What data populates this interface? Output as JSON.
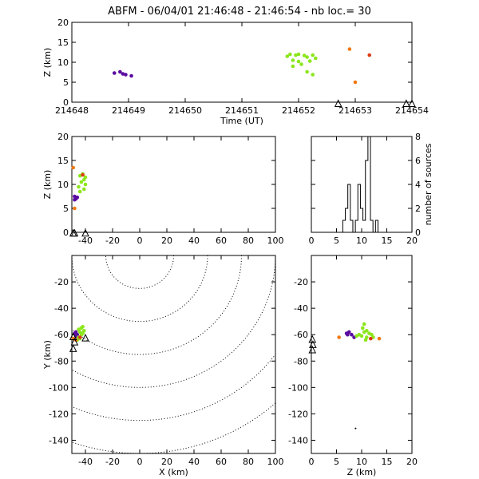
{
  "title": "ABFM - 06/04/01 21:46:48 - 21:46:54 - nb loc.=      30",
  "colors": {
    "purple": "#5a0aa0",
    "green": "#8ce61e",
    "orange": "#f07814",
    "red": "#dc3c14"
  },
  "chart_data": [
    {
      "id": "time-height",
      "type": "scatter",
      "xlabel": "Time (UT)",
      "ylabel": "Z (km)",
      "xlim": [
        214648,
        214654
      ],
      "ylim": [
        0,
        20
      ],
      "xticks": [
        "214648",
        "214649",
        "214650",
        "214651",
        "214652",
        "214653",
        "214654"
      ],
      "yticks": [
        "0",
        "5",
        "10",
        "15",
        "20"
      ],
      "stations": [
        {
          "x": 214652.7,
          "y": -0.5
        },
        {
          "x": 214653.9,
          "y": -0.5
        },
        {
          "x": 214654.0,
          "y": -0.5
        }
      ],
      "points": [
        {
          "x": 214648.75,
          "y": 7.3,
          "c": "purple"
        },
        {
          "x": 214648.85,
          "y": 7.6,
          "c": "purple"
        },
        {
          "x": 214648.9,
          "y": 7.1,
          "c": "purple"
        },
        {
          "x": 214648.95,
          "y": 6.9,
          "c": "purple"
        },
        {
          "x": 214649.05,
          "y": 6.6,
          "c": "purple"
        },
        {
          "x": 214651.8,
          "y": 11.5,
          "c": "green"
        },
        {
          "x": 214651.85,
          "y": 12.0,
          "c": "green"
        },
        {
          "x": 214651.9,
          "y": 10.5,
          "c": "green"
        },
        {
          "x": 214651.95,
          "y": 11.8,
          "c": "green"
        },
        {
          "x": 214652.0,
          "y": 12.0,
          "c": "green"
        },
        {
          "x": 214652.0,
          "y": 10.2,
          "c": "green"
        },
        {
          "x": 214652.05,
          "y": 9.5,
          "c": "green"
        },
        {
          "x": 214652.1,
          "y": 11.7,
          "c": "green"
        },
        {
          "x": 214652.15,
          "y": 11.3,
          "c": "green"
        },
        {
          "x": 214652.2,
          "y": 10.3,
          "c": "green"
        },
        {
          "x": 214652.25,
          "y": 11.8,
          "c": "green"
        },
        {
          "x": 214652.3,
          "y": 11.0,
          "c": "green"
        },
        {
          "x": 214651.9,
          "y": 9.0,
          "c": "green"
        },
        {
          "x": 214652.15,
          "y": 7.6,
          "c": "green"
        },
        {
          "x": 214652.25,
          "y": 6.9,
          "c": "green"
        },
        {
          "x": 214652.9,
          "y": 13.3,
          "c": "orange"
        },
        {
          "x": 214653.0,
          "y": 5.0,
          "c": "orange"
        },
        {
          "x": 214653.25,
          "y": 11.8,
          "c": "red"
        }
      ]
    },
    {
      "id": "x-height",
      "type": "scatter",
      "xlabel": "",
      "ylabel": "Z (km)",
      "xlim": [
        -50,
        100
      ],
      "ylim": [
        0,
        20
      ],
      "xticks": [
        "-40",
        "-20",
        "0",
        "20",
        "40",
        "60",
        "80",
        "100"
      ],
      "yticks": [
        "0",
        "5",
        "10",
        "15",
        "20"
      ],
      "stations": [
        {
          "x": -49,
          "y": -0.3
        },
        {
          "x": -48,
          "y": -0.3
        },
        {
          "x": -40,
          "y": -0.3
        }
      ],
      "points": [
        {
          "x": -48,
          "y": 7.5,
          "c": "purple"
        },
        {
          "x": -47,
          "y": 7.0,
          "c": "purple"
        },
        {
          "x": -46,
          "y": 7.3,
          "c": "purple"
        },
        {
          "x": -48,
          "y": 6.8,
          "c": "purple"
        },
        {
          "x": -44,
          "y": 11.8,
          "c": "green"
        },
        {
          "x": -42,
          "y": 12.0,
          "c": "green"
        },
        {
          "x": -41,
          "y": 11.0,
          "c": "green"
        },
        {
          "x": -43,
          "y": 10.5,
          "c": "green"
        },
        {
          "x": -40,
          "y": 10.0,
          "c": "green"
        },
        {
          "x": -45,
          "y": 9.5,
          "c": "green"
        },
        {
          "x": -41,
          "y": 9.0,
          "c": "green"
        },
        {
          "x": -44,
          "y": 8.5,
          "c": "green"
        },
        {
          "x": -40,
          "y": 11.5,
          "c": "green"
        },
        {
          "x": -42,
          "y": 12.2,
          "c": "green"
        },
        {
          "x": -49,
          "y": 13.5,
          "c": "orange"
        },
        {
          "x": -48,
          "y": 5.0,
          "c": "orange"
        },
        {
          "x": -42,
          "y": 12.0,
          "c": "red"
        }
      ]
    },
    {
      "id": "height-histogram",
      "type": "bar",
      "xlabel": "",
      "ylabel": "number of sources",
      "xlim": [
        0,
        20
      ],
      "ylim": [
        0,
        8
      ],
      "xticks": [
        "0",
        "5",
        "10",
        "15",
        "20"
      ],
      "yticks": [
        "0",
        "2",
        "4",
        "6",
        "8"
      ],
      "bins": [
        {
          "x": 6.5,
          "value": 1
        },
        {
          "x": 7.0,
          "value": 2
        },
        {
          "x": 7.5,
          "value": 4
        },
        {
          "x": 8.0,
          "value": 1
        },
        {
          "x": 8.5,
          "value": 0
        },
        {
          "x": 9.0,
          "value": 1
        },
        {
          "x": 9.5,
          "value": 4
        },
        {
          "x": 10.0,
          "value": 2
        },
        {
          "x": 10.5,
          "value": 1
        },
        {
          "x": 11.0,
          "value": 6
        },
        {
          "x": 11.5,
          "value": 8
        },
        {
          "x": 12.0,
          "value": 1
        },
        {
          "x": 12.5,
          "value": 0
        },
        {
          "x": 13.0,
          "value": 1
        }
      ]
    },
    {
      "id": "plan-view",
      "type": "scatter",
      "xlabel": "X (km)",
      "ylabel": "Y (km)",
      "xlim": [
        -50,
        100
      ],
      "ylim": [
        -150,
        0
      ],
      "xticks": [
        "-40",
        "-20",
        "0",
        "20",
        "40",
        "60",
        "80",
        "100"
      ],
      "yticks": [
        "-20",
        "-40",
        "-60",
        "-80",
        "-100",
        "-120",
        "-140"
      ],
      "range_rings": {
        "center": [
          0,
          0
        ],
        "radii": [
          25,
          50,
          75,
          100,
          125,
          150
        ]
      },
      "stations": [
        {
          "x": -49,
          "y": -62
        },
        {
          "x": -48,
          "y": -66
        },
        {
          "x": -49,
          "y": -71
        },
        {
          "x": -40,
          "y": -63
        }
      ],
      "points": [
        {
          "x": -48,
          "y": -59,
          "c": "purple"
        },
        {
          "x": -47,
          "y": -58,
          "c": "purple"
        },
        {
          "x": -46,
          "y": -60,
          "c": "purple"
        },
        {
          "x": -47,
          "y": -61,
          "c": "purple"
        },
        {
          "x": -45,
          "y": -56,
          "c": "green"
        },
        {
          "x": -43,
          "y": -55,
          "c": "green"
        },
        {
          "x": -42,
          "y": -54,
          "c": "green"
        },
        {
          "x": -44,
          "y": -58,
          "c": "green"
        },
        {
          "x": -43,
          "y": -60,
          "c": "green"
        },
        {
          "x": -45,
          "y": -62,
          "c": "green"
        },
        {
          "x": -46,
          "y": -64,
          "c": "green"
        },
        {
          "x": -41,
          "y": -57,
          "c": "green"
        },
        {
          "x": -44,
          "y": -63,
          "c": "green"
        },
        {
          "x": -42,
          "y": -59,
          "c": "green"
        },
        {
          "x": -49,
          "y": -63,
          "c": "orange"
        },
        {
          "x": -47,
          "y": -64,
          "c": "orange"
        },
        {
          "x": -44,
          "y": -62,
          "c": "red"
        }
      ]
    },
    {
      "id": "height-plan",
      "type": "scatter",
      "xlabel": "Z (km)",
      "ylabel": "",
      "xlim": [
        0,
        20
      ],
      "ylim": [
        -150,
        0
      ],
      "xticks": [
        "0",
        "5",
        "10",
        "15",
        "20"
      ],
      "yticks": [
        "-20",
        "-40",
        "-60",
        "-80",
        "-100",
        "-120",
        "-140"
      ],
      "stations": [
        {
          "x": 0.2,
          "y": -64
        },
        {
          "x": 0.3,
          "y": -68
        },
        {
          "x": 0.2,
          "y": -72
        }
      ],
      "points": [
        {
          "x": 7.0,
          "y": -59,
          "c": "purple"
        },
        {
          "x": 7.5,
          "y": -58,
          "c": "purple"
        },
        {
          "x": 8.0,
          "y": -60,
          "c": "purple"
        },
        {
          "x": 7.2,
          "y": -60,
          "c": "purple"
        },
        {
          "x": 8.5,
          "y": -62,
          "c": "purple"
        },
        {
          "x": 9.5,
          "y": -60,
          "c": "green"
        },
        {
          "x": 10.0,
          "y": -61,
          "c": "green"
        },
        {
          "x": 10.5,
          "y": -58,
          "c": "green"
        },
        {
          "x": 10.2,
          "y": -55,
          "c": "green"
        },
        {
          "x": 11.0,
          "y": -57,
          "c": "green"
        },
        {
          "x": 11.5,
          "y": -59,
          "c": "green"
        },
        {
          "x": 12.0,
          "y": -60,
          "c": "green"
        },
        {
          "x": 12.3,
          "y": -62,
          "c": "green"
        },
        {
          "x": 11.0,
          "y": -62,
          "c": "green"
        },
        {
          "x": 10.8,
          "y": -64,
          "c": "green"
        },
        {
          "x": 9.0,
          "y": -61,
          "c": "green"
        },
        {
          "x": 10.5,
          "y": -52,
          "c": "green"
        },
        {
          "x": 5.5,
          "y": -62,
          "c": "orange"
        },
        {
          "x": 13.5,
          "y": -63,
          "c": "orange"
        },
        {
          "x": 11.8,
          "y": -63,
          "c": "red"
        },
        {
          "x": 8.8,
          "y": -131,
          "c": "black"
        }
      ]
    }
  ]
}
